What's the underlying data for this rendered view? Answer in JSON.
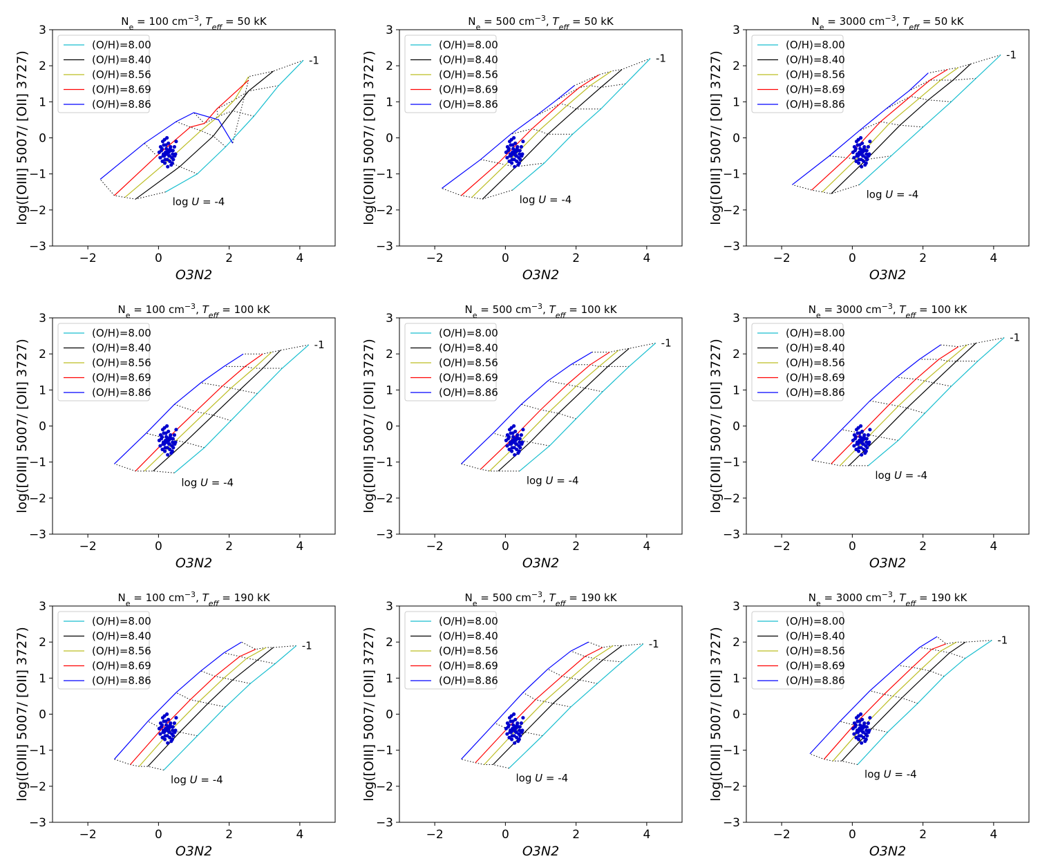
{
  "figure": {
    "xlabel": "O3N2",
    "ylabel": "log([OIII] 5007/ [OII] 3727)",
    "xlim": [
      -3,
      5
    ],
    "ylim": [
      -3,
      3
    ],
    "xticks": [
      -2,
      0,
      2,
      4
    ],
    "yticks": [
      -3,
      -2,
      -1,
      0,
      1,
      2,
      3
    ],
    "annotation_low": "log U = -4",
    "annotation_high": "-1",
    "legend_labels": [
      "(O/H)=8.00",
      "(O/H)=8.40",
      "(O/H)=8.56",
      "(O/H)=8.69",
      "(O/H)=8.86"
    ],
    "colors": {
      "8.00": "#17becf",
      "8.40": "#000000",
      "8.56": "#bcbd22",
      "8.69": "#ff0000",
      "8.86": "#0000ff",
      "points": "#0000cc"
    }
  },
  "chart_data": [
    {
      "type": "line",
      "title": "Ne = 100 cm−3, Teff = 50 kK",
      "ne": "100",
      "teff": "50 kK",
      "series": [
        {
          "name": "(O/H)=8.00",
          "x": [
            0.2,
            1.1,
            1.9,
            2.7,
            3.4,
            4.1
          ],
          "y": [
            -1.5,
            -1.0,
            -0.25,
            0.6,
            1.45,
            2.15
          ]
        },
        {
          "name": "(O/H)=8.40",
          "x": [
            -0.65,
            0.6,
            1.55,
            2.1,
            2.55,
            3.25
          ],
          "y": [
            -1.7,
            -0.8,
            0.05,
            0.75,
            1.3,
            1.85
          ]
        },
        {
          "name": "(O/H)=8.56",
          "x": [
            -0.95,
            0.25,
            1.2,
            1.7,
            2.15,
            2.55
          ],
          "y": [
            -1.65,
            -0.65,
            0.2,
            0.6,
            1.05,
            1.7
          ]
        },
        {
          "name": "(O/H)=8.69",
          "x": [
            -1.25,
            -0.05,
            0.9,
            1.3,
            1.65,
            2.55
          ],
          "y": [
            -1.6,
            -0.5,
            0.3,
            0.4,
            0.8,
            1.6
          ]
        },
        {
          "name": "(O/H)=8.86",
          "x": [
            -1.65,
            -0.4,
            0.5,
            1.0,
            1.7,
            2.1
          ],
          "y": [
            -1.15,
            -0.15,
            0.45,
            0.7,
            0.5,
            -0.15
          ]
        }
      ]
    },
    {
      "type": "line",
      "title": "Ne = 500 cm−3, Teff = 50 kK",
      "ne": "500",
      "teff": "50 kK",
      "series": [
        {
          "name": "(O/H)=8.00",
          "x": [
            0.2,
            1.1,
            1.9,
            2.7,
            3.4,
            4.1
          ],
          "y": [
            -1.45,
            -0.7,
            0.1,
            0.8,
            1.5,
            2.2
          ]
        },
        {
          "name": "(O/H)=8.40",
          "x": [
            -0.65,
            0.3,
            1.2,
            2.0,
            2.7,
            3.3
          ],
          "y": [
            -1.7,
            -0.8,
            0.1,
            0.8,
            1.4,
            1.9
          ]
        },
        {
          "name": "(O/H)=8.56",
          "x": [
            -0.95,
            0.0,
            0.95,
            1.75,
            2.4,
            3.0
          ],
          "y": [
            -1.65,
            -0.75,
            0.2,
            0.9,
            1.45,
            1.85
          ]
        },
        {
          "name": "(O/H)=8.69",
          "x": [
            -1.25,
            -0.2,
            0.75,
            1.55,
            2.1,
            2.65
          ],
          "y": [
            -1.6,
            -0.7,
            0.25,
            0.95,
            1.4,
            1.75
          ]
        },
        {
          "name": "(O/H)=8.86",
          "x": [
            -1.8,
            -0.7,
            0.15,
            0.85,
            1.45,
            1.95
          ],
          "y": [
            -1.4,
            -0.6,
            0.1,
            0.6,
            1.05,
            1.45
          ]
        }
      ]
    },
    {
      "type": "line",
      "title": "Ne = 3000 cm−3, Teff = 50 kK",
      "ne": "3000",
      "teff": "50 kK",
      "series": [
        {
          "name": "(O/H)=8.00",
          "x": [
            0.2,
            1.1,
            2.0,
            2.8,
            3.5,
            4.2
          ],
          "y": [
            -1.3,
            -0.5,
            0.3,
            1.0,
            1.65,
            2.3
          ]
        },
        {
          "name": "(O/H)=8.40",
          "x": [
            -0.6,
            0.4,
            1.35,
            2.15,
            2.85,
            3.35
          ],
          "y": [
            -1.55,
            -0.6,
            0.35,
            1.05,
            1.6,
            2.05
          ]
        },
        {
          "name": "(O/H)=8.56",
          "x": [
            -0.85,
            0.1,
            1.05,
            1.9,
            2.5,
            3.0
          ],
          "y": [
            -1.5,
            -0.6,
            0.4,
            1.1,
            1.6,
            1.95
          ]
        },
        {
          "name": "(O/H)=8.69",
          "x": [
            -1.15,
            -0.15,
            0.8,
            1.65,
            2.2,
            2.7
          ],
          "y": [
            -1.45,
            -0.55,
            0.45,
            1.15,
            1.6,
            1.9
          ]
        },
        {
          "name": "(O/H)=8.86",
          "x": [
            -1.7,
            -0.65,
            0.2,
            0.95,
            1.6,
            2.15
          ],
          "y": [
            -1.3,
            -0.5,
            0.2,
            0.8,
            1.3,
            1.8
          ]
        }
      ]
    },
    {
      "type": "line",
      "title": "Ne = 100 cm−3, Teff = 100 kK",
      "ne": "100",
      "teff": "100 kK",
      "series": [
        {
          "name": "(O/H)=8.00",
          "x": [
            0.45,
            1.3,
            2.05,
            2.8,
            3.5,
            4.25
          ],
          "y": [
            -1.3,
            -0.6,
            0.15,
            0.9,
            1.6,
            2.25
          ]
        },
        {
          "name": "(O/H)=8.40",
          "x": [
            -0.15,
            0.75,
            1.55,
            2.3,
            2.95,
            3.45
          ],
          "y": [
            -1.25,
            -0.45,
            0.3,
            1.0,
            1.6,
            2.1
          ]
        },
        {
          "name": "(O/H)=8.56",
          "x": [
            -0.4,
            0.5,
            1.3,
            2.05,
            2.7,
            3.2
          ],
          "y": [
            -1.25,
            -0.4,
            0.35,
            1.05,
            1.6,
            2.05
          ]
        },
        {
          "name": "(O/H)=8.69",
          "x": [
            -0.65,
            0.25,
            1.05,
            1.8,
            2.45,
            2.95
          ],
          "y": [
            -1.25,
            -0.35,
            0.4,
            1.1,
            1.65,
            2.0
          ]
        },
        {
          "name": "(O/H)=8.86",
          "x": [
            -1.25,
            -0.35,
            0.45,
            1.2,
            1.85,
            2.4
          ],
          "y": [
            -1.05,
            -0.2,
            0.6,
            1.2,
            1.65,
            2.0
          ]
        }
      ]
    },
    {
      "type": "line",
      "title": "Ne = 500 cm−3, Teff = 100 kK",
      "ne": "500",
      "teff": "100 kK",
      "series": [
        {
          "name": "(O/H)=8.00",
          "x": [
            0.4,
            1.25,
            2.0,
            2.75,
            3.5,
            4.25
          ],
          "y": [
            -1.25,
            -0.55,
            0.2,
            0.95,
            1.65,
            2.3
          ]
        },
        {
          "name": "(O/H)=8.40",
          "x": [
            -0.2,
            0.7,
            1.5,
            2.25,
            2.9,
            3.5
          ],
          "y": [
            -1.25,
            -0.45,
            0.35,
            1.05,
            1.65,
            2.15
          ]
        },
        {
          "name": "(O/H)=8.56",
          "x": [
            -0.45,
            0.45,
            1.25,
            2.0,
            2.65,
            3.2
          ],
          "y": [
            -1.25,
            -0.4,
            0.4,
            1.1,
            1.65,
            2.1
          ]
        },
        {
          "name": "(O/H)=8.69",
          "x": [
            -0.7,
            0.2,
            1.0,
            1.75,
            2.4,
            2.95
          ],
          "y": [
            -1.2,
            -0.35,
            0.45,
            1.15,
            1.7,
            2.05
          ]
        },
        {
          "name": "(O/H)=8.86",
          "x": [
            -1.25,
            -0.35,
            0.45,
            1.2,
            1.85,
            2.45
          ],
          "y": [
            -1.05,
            -0.2,
            0.6,
            1.25,
            1.7,
            2.05
          ]
        }
      ]
    },
    {
      "type": "line",
      "title": "Ne = 3000 cm−3, Teff = 100 kK",
      "ne": "3000",
      "teff": "100 kK",
      "series": [
        {
          "name": "(O/H)=8.00",
          "x": [
            0.45,
            1.3,
            2.05,
            2.8,
            3.55,
            4.3
          ],
          "y": [
            -1.1,
            -0.4,
            0.35,
            1.1,
            1.8,
            2.45
          ]
        },
        {
          "name": "(O/H)=8.40",
          "x": [
            -0.1,
            0.75,
            1.55,
            2.3,
            2.95,
            3.5
          ],
          "y": [
            -1.1,
            -0.3,
            0.5,
            1.2,
            1.8,
            2.3
          ]
        },
        {
          "name": "(O/H)=8.56",
          "x": [
            -0.35,
            0.5,
            1.3,
            2.05,
            2.7,
            3.25
          ],
          "y": [
            -1.1,
            -0.25,
            0.55,
            1.25,
            1.8,
            2.25
          ]
        },
        {
          "name": "(O/H)=8.69",
          "x": [
            -0.6,
            0.25,
            1.05,
            1.8,
            2.45,
            3.0
          ],
          "y": [
            -1.05,
            -0.2,
            0.6,
            1.3,
            1.85,
            2.2
          ]
        },
        {
          "name": "(O/H)=8.86",
          "x": [
            -1.15,
            -0.3,
            0.5,
            1.25,
            1.9,
            2.5
          ],
          "y": [
            -0.95,
            -0.1,
            0.7,
            1.35,
            1.85,
            2.25
          ]
        }
      ]
    },
    {
      "type": "line",
      "title": "Ne = 100 cm−3, Teff = 190 kK",
      "ne": "100",
      "teff": "190 kK",
      "series": [
        {
          "name": "(O/H)=8.00",
          "x": [
            0.15,
            1.1,
            1.9,
            2.6,
            3.3,
            3.9
          ],
          "y": [
            -1.55,
            -0.6,
            0.2,
            0.85,
            1.4,
            1.9
          ]
        },
        {
          "name": "(O/H)=8.40",
          "x": [
            -0.3,
            0.6,
            1.4,
            2.1,
            2.8,
            3.25
          ],
          "y": [
            -1.45,
            -0.5,
            0.3,
            0.95,
            1.5,
            1.85
          ]
        },
        {
          "name": "(O/H)=8.56",
          "x": [
            -0.55,
            0.35,
            1.15,
            1.85,
            2.5,
            3.05
          ],
          "y": [
            -1.45,
            -0.45,
            0.35,
            1.0,
            1.55,
            1.85
          ]
        },
        {
          "name": "(O/H)=8.69",
          "x": [
            -0.8,
            0.1,
            0.9,
            1.6,
            2.3,
            2.75
          ],
          "y": [
            -1.4,
            -0.4,
            0.4,
            1.05,
            1.6,
            1.8
          ]
        },
        {
          "name": "(O/H)=8.86",
          "x": [
            -1.25,
            -0.3,
            0.5,
            1.2,
            1.85,
            2.35
          ],
          "y": [
            -1.25,
            -0.2,
            0.6,
            1.2,
            1.7,
            2.0
          ]
        }
      ]
    },
    {
      "type": "line",
      "title": "Ne = 500 cm−3, Teff = 190 kK",
      "ne": "500",
      "teff": "190 kK",
      "series": [
        {
          "name": "(O/H)=8.00",
          "x": [
            0.1,
            1.05,
            1.85,
            2.6,
            3.3,
            3.9
          ],
          "y": [
            -1.5,
            -0.6,
            0.2,
            0.85,
            1.45,
            1.95
          ]
        },
        {
          "name": "(O/H)=8.40",
          "x": [
            -0.35,
            0.55,
            1.35,
            2.1,
            2.75,
            3.3
          ],
          "y": [
            -1.4,
            -0.5,
            0.3,
            0.95,
            1.5,
            1.9
          ]
        },
        {
          "name": "(O/H)=8.56",
          "x": [
            -0.6,
            0.3,
            1.1,
            1.85,
            2.5,
            3.05
          ],
          "y": [
            -1.4,
            -0.45,
            0.35,
            1.0,
            1.55,
            1.9
          ]
        },
        {
          "name": "(O/H)=8.69",
          "x": [
            -0.85,
            0.05,
            0.85,
            1.6,
            2.25,
            2.75
          ],
          "y": [
            -1.35,
            -0.4,
            0.4,
            1.05,
            1.6,
            1.85
          ]
        },
        {
          "name": "(O/H)=8.86",
          "x": [
            -1.25,
            -0.3,
            0.5,
            1.2,
            1.85,
            2.35
          ],
          "y": [
            -1.25,
            -0.25,
            0.6,
            1.25,
            1.75,
            2.0
          ]
        }
      ]
    },
    {
      "type": "line",
      "title": "Ne = 3000 cm−3, Teff = 190 kK",
      "ne": "3000",
      "teff": "190 kK",
      "series": [
        {
          "name": "(O/H)=8.00",
          "x": [
            0.15,
            1.0,
            1.85,
            2.6,
            3.2,
            3.95
          ],
          "y": [
            -1.4,
            -0.5,
            0.3,
            1.05,
            1.55,
            2.05
          ]
        },
        {
          "name": "(O/H)=8.40",
          "x": [
            -0.3,
            0.55,
            1.4,
            2.2,
            2.75,
            3.2
          ],
          "y": [
            -1.3,
            -0.4,
            0.45,
            1.2,
            1.7,
            2.0
          ]
        },
        {
          "name": "(O/H)=8.56",
          "x": [
            -0.55,
            0.3,
            1.15,
            1.95,
            2.5,
            2.95
          ],
          "y": [
            -1.3,
            -0.35,
            0.5,
            1.25,
            1.75,
            2.0
          ]
        },
        {
          "name": "(O/H)=8.69",
          "x": [
            -0.8,
            0.05,
            0.9,
            1.7,
            2.25,
            2.65
          ],
          "y": [
            -1.25,
            -0.3,
            0.55,
            1.3,
            1.8,
            1.95
          ]
        },
        {
          "name": "(O/H)=8.86",
          "x": [
            -1.2,
            -0.35,
            0.5,
            1.3,
            1.9,
            2.4
          ],
          "y": [
            -1.1,
            -0.2,
            0.65,
            1.35,
            1.85,
            2.15
          ]
        }
      ]
    }
  ],
  "observed_points": {
    "name": "observed",
    "x": [
      0.1,
      0.2,
      0.3,
      0.15,
      0.25,
      0.35,
      0.4,
      0.45,
      0.05,
      0.12,
      0.18,
      0.28,
      0.32,
      0.38,
      0.22,
      0.14,
      0.26,
      0.42,
      0.5,
      0.02,
      0.08,
      0.16,
      0.24,
      0.34,
      0.46,
      0.36,
      0.19,
      0.29,
      0.11,
      0.41,
      0.21,
      0.31,
      0.39,
      0.06,
      0.48,
      0.17,
      0.27,
      0.13,
      0.33,
      0.23
    ],
    "y": [
      -0.3,
      -0.4,
      -0.5,
      -0.2,
      -0.6,
      -0.35,
      -0.45,
      -0.25,
      -0.55,
      -0.1,
      -0.7,
      -0.15,
      -0.65,
      -0.55,
      -0.3,
      -0.45,
      -0.8,
      -0.6,
      -0.1,
      -0.4,
      -0.35,
      -0.5,
      0.0,
      -0.25,
      -0.5,
      -0.75,
      -0.6,
      -0.4,
      -0.65,
      -0.35,
      -0.2,
      -0.5,
      -0.7,
      -0.25,
      -0.45,
      -0.05,
      -0.35,
      -0.5,
      -0.3,
      -0.45
    ]
  }
}
